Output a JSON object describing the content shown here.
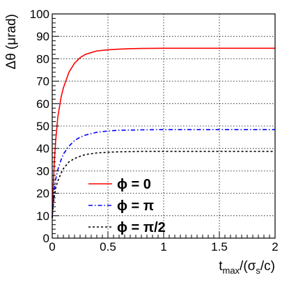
{
  "chart_data": {
    "type": "line",
    "title": "",
    "xlabel": {
      "prefix": "t",
      "sub": "max",
      "mid": "/(σ",
      "sub2": "s",
      "suffix": "/c)"
    },
    "ylabel": "Δθ (μrad)",
    "xlim": [
      0,
      2
    ],
    "ylim": [
      0,
      100
    ],
    "x_ticks": [
      0,
      0.5,
      1,
      1.5,
      2
    ],
    "x_tick_labels": [
      "0",
      "0.5",
      "1",
      "1.5",
      "2"
    ],
    "y_ticks": [
      0,
      10,
      20,
      30,
      40,
      50,
      60,
      70,
      80,
      90,
      100
    ],
    "y_tick_labels": [
      "0",
      "10",
      "20",
      "30",
      "40",
      "50",
      "60",
      "70",
      "80",
      "90",
      "100"
    ],
    "grid": true,
    "legend_position": "bottom-center",
    "series": [
      {
        "name": "ϕ = 0",
        "legend": {
          "symbol": "ϕ",
          "eq": " = ",
          "value": "0"
        },
        "color": "#ff0000",
        "dash": "solid",
        "x": [
          0.0,
          0.01,
          0.02,
          0.03,
          0.05,
          0.08,
          0.1,
          0.15,
          0.2,
          0.25,
          0.3,
          0.4,
          0.5,
          0.6,
          0.7,
          0.8,
          1.0,
          1.2,
          1.5,
          1.75,
          2.0
        ],
        "y": [
          9,
          24,
          35,
          43,
          54,
          63,
          67,
          74,
          78,
          80.5,
          82,
          83.5,
          84,
          84.3,
          84.5,
          84.6,
          84.7,
          84.7,
          84.7,
          84.7,
          84.7
        ]
      },
      {
        "name": "ϕ = π",
        "legend": {
          "symbol": "ϕ",
          "eq": " = ",
          "value": "π"
        },
        "color": "#0000ff",
        "dash": "dashdot",
        "x": [
          0.0,
          0.01,
          0.02,
          0.03,
          0.05,
          0.08,
          0.1,
          0.15,
          0.2,
          0.25,
          0.3,
          0.4,
          0.5,
          0.6,
          0.7,
          0.8,
          1.0,
          1.2,
          1.5,
          1.75,
          2.0
        ],
        "y": [
          9,
          17,
          22,
          26,
          30.5,
          35,
          37.5,
          41,
          43.5,
          45,
          46,
          47.2,
          47.8,
          48.1,
          48.2,
          48.3,
          48.4,
          48.4,
          48.4,
          48.4,
          48.4
        ]
      },
      {
        "name": "ϕ = π/2",
        "legend": {
          "symbol": "ϕ",
          "eq": " = ",
          "value": "π/2"
        },
        "color": "#000000",
        "dash": "dotted",
        "x": [
          0.0,
          0.01,
          0.02,
          0.03,
          0.05,
          0.08,
          0.1,
          0.15,
          0.2,
          0.25,
          0.3,
          0.4,
          0.5,
          0.6,
          0.7,
          0.8,
          1.0,
          1.2,
          1.5,
          1.75,
          2.0
        ],
        "y": [
          9,
          15,
          19,
          22,
          25.5,
          29,
          31,
          34,
          35.5,
          36.5,
          37.3,
          38,
          38.3,
          38.5,
          38.6,
          38.7,
          38.7,
          38.7,
          38.7,
          38.7,
          38.7
        ]
      }
    ]
  }
}
